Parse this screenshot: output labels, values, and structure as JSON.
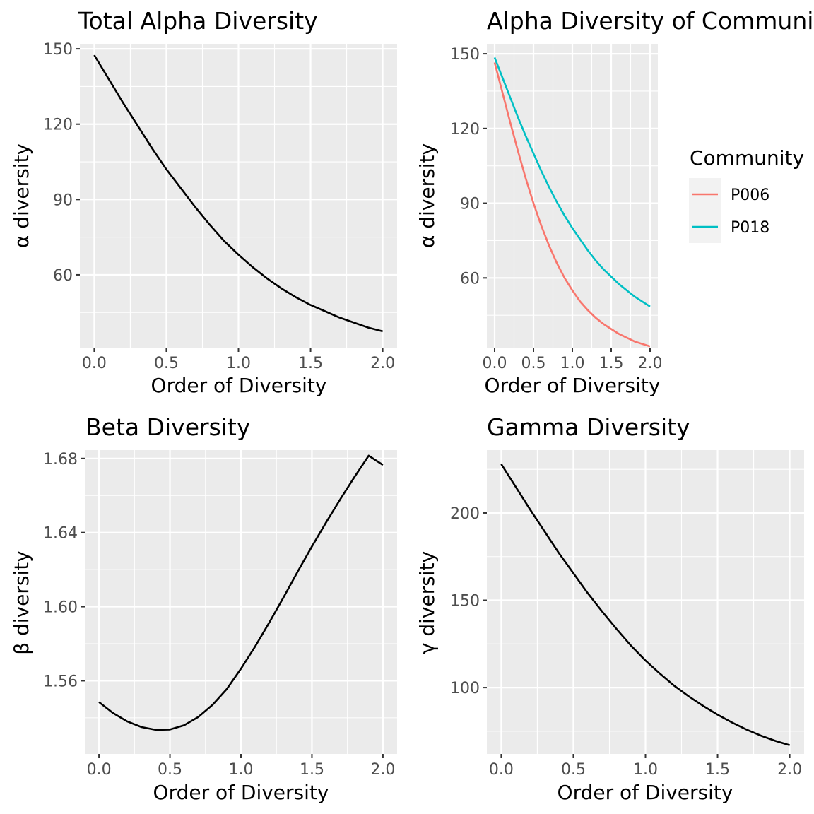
{
  "chart_data": [
    {
      "type": "line",
      "title": "Total Alpha Diversity",
      "xlabel": "Order of Diversity",
      "ylabel": "α diversity",
      "xlim": [
        -0.1,
        2.1
      ],
      "ylim": [
        31,
        152
      ],
      "x_ticks": [
        0,
        0.5,
        1,
        1.5,
        2
      ],
      "x_tick_labels": [
        "0.0",
        "0.5",
        "1.0",
        "1.5",
        "2.0"
      ],
      "y_ticks": [
        60,
        90,
        120,
        150
      ],
      "y_tick_labels": [
        "60",
        "90",
        "120",
        "150"
      ],
      "grid": true,
      "series": [
        {
          "color": "#000000",
          "x": [
            0,
            0.1,
            0.2,
            0.3,
            0.4,
            0.5,
            0.6,
            0.7,
            0.8,
            0.9,
            1.0,
            1.1,
            1.2,
            1.3,
            1.4,
            1.5,
            1.6,
            1.7,
            1.8,
            1.9,
            2.0
          ],
          "y": [
            147.5,
            138,
            128.5,
            119.5,
            110.5,
            102,
            94.5,
            87,
            80,
            73.5,
            68,
            63,
            58.5,
            54.5,
            51,
            48,
            45.5,
            43,
            41,
            39,
            37.5
          ]
        }
      ]
    },
    {
      "type": "line",
      "title": "Alpha Diversity of Communities",
      "xlabel": "Order of Diversity",
      "ylabel": "α diversity",
      "xlim": [
        -0.1,
        2.1
      ],
      "ylim": [
        32,
        154
      ],
      "x_ticks": [
        0,
        0.5,
        1,
        1.5,
        2
      ],
      "x_tick_labels": [
        "0.0",
        "0.5",
        "1.0",
        "1.5",
        "2.0"
      ],
      "y_ticks": [
        60,
        90,
        120,
        150
      ],
      "y_tick_labels": [
        "60",
        "90",
        "120",
        "150"
      ],
      "grid": true,
      "legend": {
        "title": "Community",
        "position": "right"
      },
      "series": [
        {
          "name": "P006",
          "color": "#F8766D",
          "x": [
            0,
            0.1,
            0.2,
            0.3,
            0.4,
            0.5,
            0.6,
            0.7,
            0.8,
            0.9,
            1.0,
            1.1,
            1.2,
            1.3,
            1.4,
            1.5,
            1.6,
            1.7,
            1.8,
            1.9,
            2.0
          ],
          "y": [
            146.5,
            134.5,
            122.5,
            111,
            100,
            90,
            81,
            73,
            66,
            60,
            55,
            50.5,
            47,
            44,
            41.5,
            39.5,
            37.5,
            36,
            34.5,
            33.5,
            32.5
          ]
        },
        {
          "name": "P018",
          "color": "#00BFC4",
          "x": [
            0,
            0.1,
            0.2,
            0.3,
            0.4,
            0.5,
            0.6,
            0.7,
            0.8,
            0.9,
            1.0,
            1.1,
            1.2,
            1.3,
            1.4,
            1.5,
            1.6,
            1.7,
            1.8,
            1.9,
            2.0
          ],
          "y": [
            148.5,
            140.5,
            132.5,
            124.5,
            117,
            110,
            103,
            96.5,
            90.5,
            85,
            80,
            75.5,
            71,
            67,
            63.5,
            60.5,
            57.5,
            55,
            52.5,
            50.5,
            48.5
          ]
        }
      ]
    },
    {
      "type": "line",
      "title": "Beta Diversity",
      "xlabel": "Order of Diversity",
      "ylabel": "β diversity",
      "xlim": [
        -0.1,
        2.1
      ],
      "ylim": [
        1.5205,
        1.6845
      ],
      "x_ticks": [
        0,
        0.5,
        1,
        1.5,
        2
      ],
      "x_tick_labels": [
        "0.0",
        "0.5",
        "1.0",
        "1.5",
        "2.0"
      ],
      "y_ticks": [
        1.56,
        1.6,
        1.64,
        1.68
      ],
      "y_tick_labels": [
        "1.56",
        "1.60",
        "1.64",
        "1.68"
      ],
      "grid": true,
      "series": [
        {
          "color": "#000000",
          "x": [
            0,
            0.1,
            0.2,
            0.3,
            0.4,
            0.5,
            0.6,
            0.7,
            0.8,
            0.9,
            1.0,
            1.1,
            1.2,
            1.3,
            1.4,
            1.5,
            1.6,
            1.7,
            1.8,
            1.9,
            2.0
          ],
          "y": [
            1.5485,
            1.5425,
            1.538,
            1.535,
            1.5335,
            1.5337,
            1.536,
            1.5405,
            1.547,
            1.5555,
            1.5665,
            1.5785,
            1.5915,
            1.605,
            1.619,
            1.6325,
            1.6455,
            1.658,
            1.67,
            1.6815,
            1.6765
          ]
        }
      ]
    },
    {
      "type": "line",
      "title": "Gamma Diversity",
      "xlabel": "Order of Diversity",
      "ylabel": "γ diversity",
      "xlim": [
        -0.1,
        2.1
      ],
      "ylim": [
        62,
        236
      ],
      "x_ticks": [
        0,
        0.5,
        1,
        1.5,
        2
      ],
      "x_tick_labels": [
        "0.0",
        "0.5",
        "1.0",
        "1.5",
        "2.0"
      ],
      "y_ticks": [
        100,
        150,
        200
      ],
      "y_tick_labels": [
        "100",
        "150",
        "200"
      ],
      "grid": true,
      "series": [
        {
          "color": "#000000",
          "x": [
            0,
            0.1,
            0.2,
            0.3,
            0.4,
            0.5,
            0.6,
            0.7,
            0.8,
            0.9,
            1.0,
            1.1,
            1.2,
            1.3,
            1.4,
            1.5,
            1.6,
            1.7,
            1.8,
            1.9,
            2.0
          ],
          "y": [
            228,
            215,
            202,
            189.5,
            177,
            165.5,
            154,
            143.5,
            133.5,
            124,
            115.5,
            108,
            101,
            95,
            89.5,
            84.5,
            80,
            76,
            72.5,
            69.5,
            67
          ]
        }
      ]
    }
  ]
}
